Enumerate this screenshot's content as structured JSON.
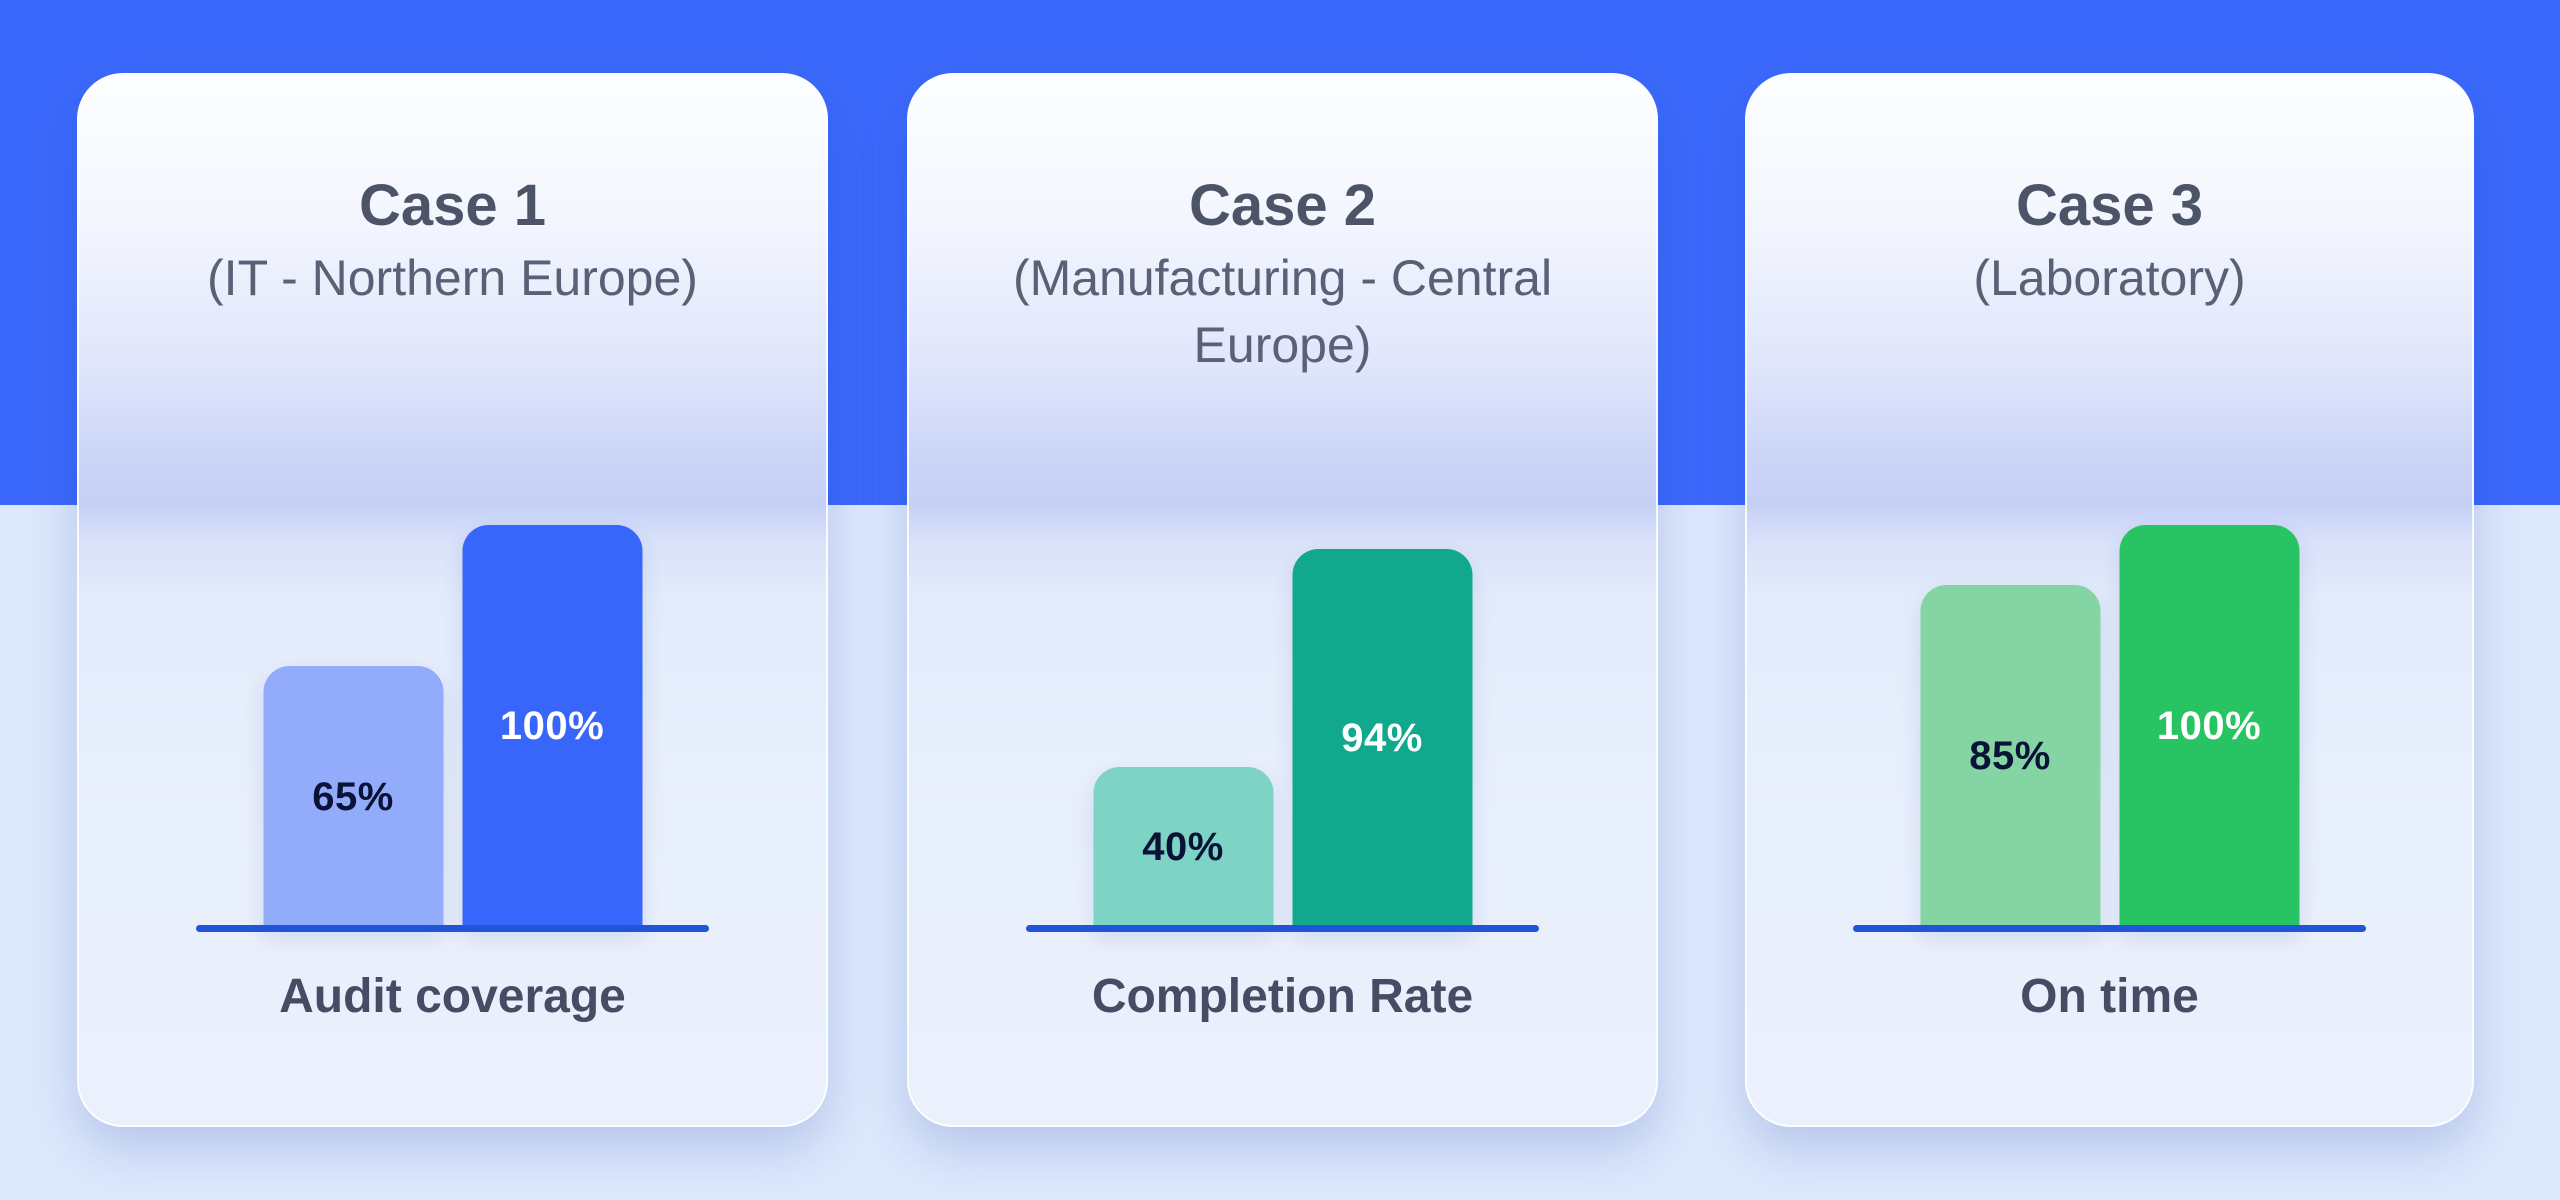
{
  "palette": {
    "band_blue": "#3B69FB",
    "page_bottom_blue": "#DCE8FC",
    "baseline_blue": "#2254DA"
  },
  "cards": [
    {
      "title": "Case 1",
      "subtitle": "(IT - Northern Europe)",
      "metric_label": "Audit coverage",
      "bars": [
        {
          "value": 65,
          "label": "65%",
          "color": "#93ABFB",
          "label_color": "#0A1238"
        },
        {
          "value": 100,
          "label": "100%",
          "color": "#3866FB",
          "label_color": "#FFFFFF"
        }
      ]
    },
    {
      "title": "Case 2",
      "subtitle": "(Manufacturing - Central Europe)",
      "metric_label": "Completion Rate",
      "bars": [
        {
          "value": 40,
          "label": "40%",
          "color": "#7DD3C4",
          "label_color": "#0A1238"
        },
        {
          "value": 94,
          "label": "94%",
          "color": "#11A88D",
          "label_color": "#FFFFFF"
        }
      ]
    },
    {
      "title": "Case 3",
      "subtitle": "(Laboratory)",
      "metric_label": "On time",
      "bars": [
        {
          "value": 85,
          "label": "85%",
          "color": "#84D5A3",
          "label_color": "#0A1238"
        },
        {
          "value": 100,
          "label": "100%",
          "color": "#28C463",
          "label_color": "#FFFFFF"
        }
      ]
    }
  ],
  "chart_data": [
    {
      "type": "bar",
      "title": "Case 1",
      "subtitle": "(IT - Northern Europe)",
      "xlabel": "Audit coverage",
      "ylabel": "",
      "values": [
        65,
        100
      ],
      "value_labels": [
        "65%",
        "100%"
      ],
      "unit": "%",
      "ylim": [
        0,
        100
      ],
      "grid": false,
      "legend": false,
      "axis": "baseline-only"
    },
    {
      "type": "bar",
      "title": "Case 2",
      "subtitle": "(Manufacturing - Central Europe)",
      "xlabel": "Completion Rate",
      "ylabel": "",
      "values": [
        40,
        94
      ],
      "value_labels": [
        "40%",
        "94%"
      ],
      "unit": "%",
      "ylim": [
        0,
        100
      ],
      "grid": false,
      "legend": false,
      "axis": "baseline-only"
    },
    {
      "type": "bar",
      "title": "Case 3",
      "subtitle": "(Laboratory)",
      "xlabel": "On time",
      "ylabel": "",
      "values": [
        85,
        100
      ],
      "value_labels": [
        "85%",
        "100%"
      ],
      "unit": "%",
      "ylim": [
        0,
        100
      ],
      "grid": false,
      "legend": false,
      "axis": "baseline-only"
    }
  ]
}
